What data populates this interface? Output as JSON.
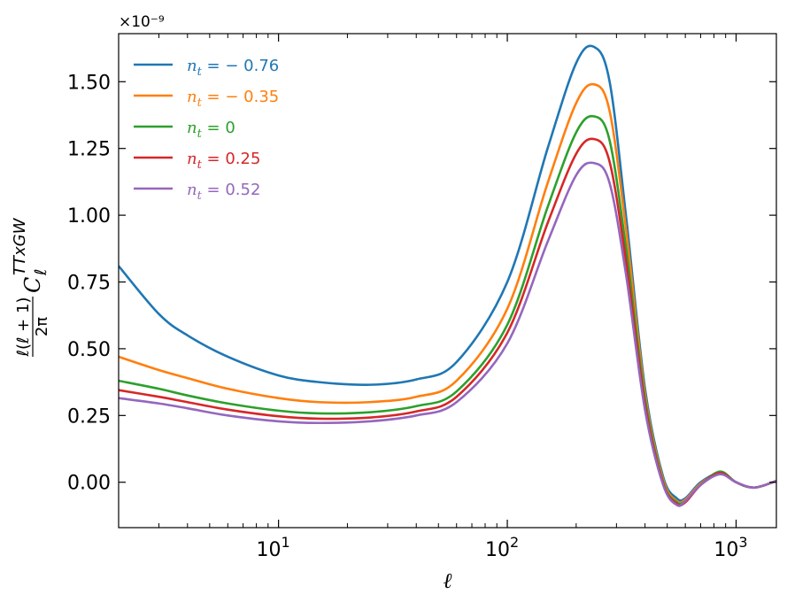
{
  "chart_data": {
    "type": "line",
    "title": "",
    "xlabel": "ℓ",
    "ylabel_parts": {
      "fraction_numerator": "ℓ(ℓ + 1)",
      "fraction_denominator": "2π",
      "symbol": "C",
      "superscript": "TTxGW",
      "subscript": "ℓ"
    },
    "x_scale": "log",
    "xlim": [
      2,
      1500
    ],
    "ylim": [
      -0.17,
      1.68
    ],
    "y_offset_label": "×10⁻⁹",
    "y_ticks": [
      0.0,
      0.25,
      0.5,
      0.75,
      1.0,
      1.25,
      1.5
    ],
    "y_tick_labels": [
      "0.00",
      "0.25",
      "0.50",
      "0.75",
      "1.00",
      "1.25",
      "1.50"
    ],
    "x_ticks": [
      10,
      100,
      1000
    ],
    "x_tick_labels": [
      {
        "base": "10",
        "exp": "1"
      },
      {
        "base": "10",
        "exp": "2"
      },
      {
        "base": "10",
        "exp": "3"
      }
    ],
    "grid": false,
    "legend_position": "top-left",
    "series": [
      {
        "name_prefix": "n",
        "name_sub": "t",
        "name_value": " = − 0.76",
        "color": "#1f77b4",
        "x": [
          2,
          3,
          4,
          6,
          10,
          15,
          25,
          40,
          60,
          100,
          150,
          200,
          240,
          280,
          330,
          400,
          480,
          550,
          600,
          700,
          850,
          1000,
          1200,
          1500
        ],
        "y": [
          0.81,
          0.63,
          0.55,
          0.47,
          0.4,
          0.375,
          0.365,
          0.385,
          0.45,
          0.75,
          1.25,
          1.57,
          1.63,
          1.5,
          1.0,
          0.35,
          0.02,
          -0.06,
          -0.06,
          0.0,
          0.035,
          0.0,
          -0.02,
          0.005
        ]
      },
      {
        "name_prefix": "n",
        "name_sub": "t",
        "name_value": " = − 0.35",
        "color": "#ff7f0e",
        "x": [
          2,
          3,
          4,
          6,
          10,
          15,
          25,
          40,
          60,
          100,
          150,
          200,
          240,
          280,
          330,
          400,
          480,
          550,
          600,
          700,
          850,
          1000,
          1200,
          1500
        ],
        "y": [
          0.47,
          0.42,
          0.39,
          0.35,
          0.315,
          0.3,
          0.3,
          0.32,
          0.38,
          0.65,
          1.12,
          1.42,
          1.49,
          1.39,
          0.95,
          0.33,
          0.01,
          -0.07,
          -0.065,
          -0.005,
          0.035,
          0.0,
          -0.02,
          0.005
        ]
      },
      {
        "name_prefix": "n",
        "name_sub": "t",
        "name_value": " = 0",
        "color": "#2ca02c",
        "x": [
          2,
          3,
          4,
          6,
          10,
          15,
          25,
          40,
          60,
          100,
          150,
          200,
          240,
          280,
          330,
          400,
          480,
          550,
          600,
          700,
          850,
          1000,
          1200,
          1500
        ],
        "y": [
          0.38,
          0.35,
          0.325,
          0.295,
          0.268,
          0.258,
          0.262,
          0.285,
          0.34,
          0.59,
          1.03,
          1.31,
          1.37,
          1.28,
          0.88,
          0.31,
          0.0,
          -0.075,
          -0.07,
          -0.01,
          0.04,
          0.0,
          -0.02,
          0.005
        ]
      },
      {
        "name_prefix": "n",
        "name_sub": "t",
        "name_value": " = 0.25",
        "color": "#d62728",
        "x": [
          2,
          3,
          4,
          6,
          10,
          15,
          25,
          40,
          60,
          100,
          150,
          200,
          240,
          280,
          330,
          400,
          480,
          550,
          600,
          700,
          850,
          1000,
          1200,
          1500
        ],
        "y": [
          0.345,
          0.32,
          0.3,
          0.272,
          0.247,
          0.238,
          0.242,
          0.265,
          0.32,
          0.56,
          0.97,
          1.23,
          1.285,
          1.2,
          0.83,
          0.29,
          -0.005,
          -0.08,
          -0.075,
          -0.01,
          0.035,
          0.0,
          -0.02,
          0.005
        ]
      },
      {
        "name_prefix": "n",
        "name_sub": "t",
        "name_value": " = 0.52",
        "color": "#9467bd",
        "x": [
          2,
          3,
          4,
          6,
          10,
          15,
          25,
          40,
          60,
          100,
          150,
          200,
          240,
          280,
          330,
          400,
          480,
          550,
          600,
          700,
          850,
          1000,
          1200,
          1500
        ],
        "y": [
          0.315,
          0.295,
          0.277,
          0.25,
          0.228,
          0.222,
          0.228,
          0.25,
          0.3,
          0.52,
          0.9,
          1.15,
          1.195,
          1.12,
          0.78,
          0.27,
          -0.01,
          -0.085,
          -0.07,
          -0.01,
          0.03,
          0.0,
          -0.02,
          0.005
        ]
      }
    ]
  }
}
